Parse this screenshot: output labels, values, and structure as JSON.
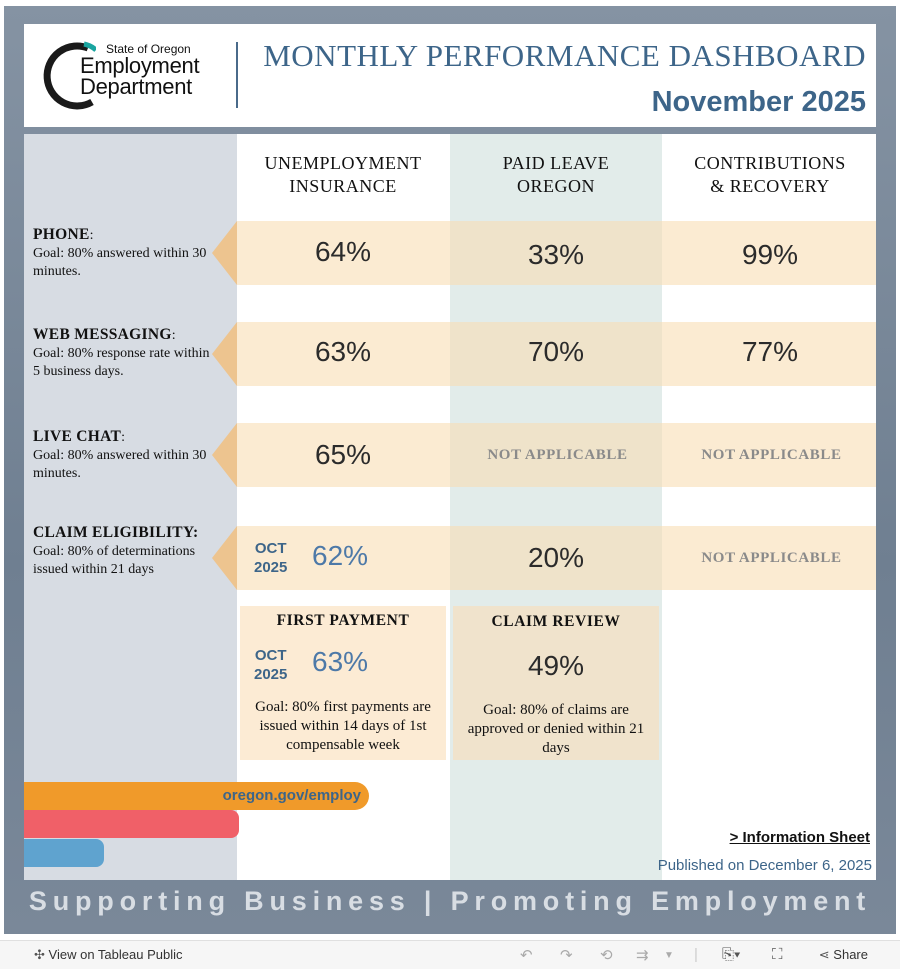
{
  "header": {
    "logo_small": "State of Oregon",
    "logo_line1": "Employment",
    "logo_line2": "Department",
    "title": "MONTHLY PERFORMANCE DASHBOARD",
    "month": "November 2025"
  },
  "columns": [
    {
      "line1": "UNEMPLOYMENT",
      "line2": "INSURANCE"
    },
    {
      "line1": "PAID LEAVE",
      "line2": "OREGON"
    },
    {
      "line1": "CONTRIBUTIONS",
      "line2": "& RECOVERY"
    }
  ],
  "rows": [
    {
      "label": "PHONE",
      "sep": ":",
      "goal": "Goal: 80% answered within 30 minutes.",
      "ui": "64%",
      "pl": "33%",
      "cr": "99%"
    },
    {
      "label": "WEB MESSAGING",
      "sep": ":",
      "goal": "Goal: 80% response rate within 5 business days.",
      "ui": "63%",
      "pl": "70%",
      "cr": "77%"
    },
    {
      "label": "LIVE CHAT",
      "sep": ":",
      "goal": "Goal: 80% answered within 30 minutes.",
      "ui": "65%",
      "pl": "NOT APPLICABLE",
      "cr": "NOT APPLICABLE"
    },
    {
      "label": "CLAIM ELIGIBILITY:",
      "sep": "",
      "goal": "Goal: 80% of determinations issued within 21 days",
      "ui_period_month": "OCT",
      "ui_period_year": "2025",
      "ui": "62%",
      "pl": "20%",
      "cr": "NOT APPLICABLE"
    }
  ],
  "first_payment": {
    "title": "FIRST PAYMENT",
    "period_month": "OCT",
    "period_year": "2025",
    "value": "63%",
    "goal": "Goal: 80% first payments are issued within 14 days of 1st compensable week"
  },
  "claim_review": {
    "title": "CLAIM REVIEW",
    "value": "49%",
    "goal": "Goal: 80% of claims are approved or denied within 21 days"
  },
  "footer": {
    "url": "oregon.gov/employ",
    "info_link": "> Information Sheet",
    "published": "Published on December 6, 2025",
    "tagline": "Supporting Business | Promoting Employment"
  },
  "toolbar": {
    "view_label": "View on Tableau Public",
    "share_label": "Share"
  },
  "colors": {
    "accent": "#3d6589",
    "orange": "#f09a2a",
    "red": "#f06068",
    "blue": "#5fa3cf"
  }
}
